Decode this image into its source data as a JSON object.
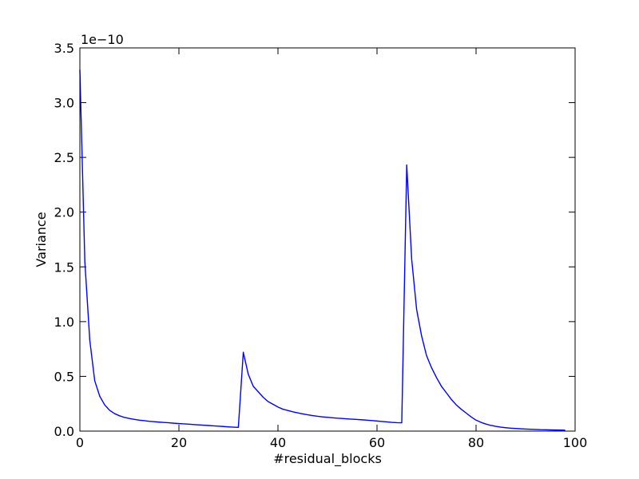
{
  "chart_data": {
    "type": "line",
    "title": "",
    "xlabel": "#residual_blocks",
    "ylabel": "Variance",
    "y_offset_text": "1e−10",
    "xlim": [
      0,
      100
    ],
    "ylim": [
      0,
      3.5
    ],
    "x_ticks": [
      0,
      20,
      40,
      60,
      80,
      100
    ],
    "x_tick_labels": [
      "0",
      "20",
      "40",
      "60",
      "80",
      "100"
    ],
    "y_ticks": [
      0,
      0.5,
      1.0,
      1.5,
      2.0,
      2.5,
      3.0,
      3.5
    ],
    "y_tick_labels": [
      "0.0",
      "0.5",
      "1.0",
      "1.5",
      "2.0",
      "2.5",
      "3.0",
      "3.5"
    ],
    "grid": false,
    "line_color": "#0000ff",
    "series": [
      {
        "x": [
          0,
          1,
          2,
          3,
          4,
          5,
          6,
          7,
          8,
          9,
          10,
          11,
          12,
          13,
          14,
          15,
          16,
          17,
          18,
          19,
          20,
          21,
          22,
          23,
          24,
          25,
          26,
          27,
          28,
          29,
          30,
          31,
          32,
          33,
          34,
          35,
          36,
          37,
          38,
          39,
          40,
          41,
          42,
          43,
          44,
          45,
          46,
          47,
          48,
          49,
          50,
          51,
          52,
          53,
          54,
          55,
          56,
          57,
          58,
          59,
          60,
          61,
          62,
          63,
          64,
          65,
          66,
          67,
          68,
          69,
          70,
          71,
          72,
          73,
          74,
          75,
          76,
          77,
          78,
          79,
          80,
          81,
          82,
          83,
          84,
          85,
          86,
          87,
          88,
          89,
          90,
          91,
          92,
          93,
          94,
          95,
          96,
          97,
          98
        ],
        "y": [
          3.3,
          1.55,
          0.83,
          0.46,
          0.32,
          0.24,
          0.19,
          0.16,
          0.14,
          0.125,
          0.115,
          0.107,
          0.1,
          0.095,
          0.09,
          0.086,
          0.082,
          0.079,
          0.076,
          0.072,
          0.069,
          0.066,
          0.063,
          0.06,
          0.057,
          0.054,
          0.051,
          0.048,
          0.045,
          0.042,
          0.039,
          0.036,
          0.034,
          0.72,
          0.52,
          0.41,
          0.36,
          0.31,
          0.27,
          0.245,
          0.22,
          0.2,
          0.188,
          0.176,
          0.166,
          0.157,
          0.149,
          0.142,
          0.135,
          0.13,
          0.126,
          0.122,
          0.118,
          0.115,
          0.112,
          0.109,
          0.106,
          0.103,
          0.1,
          0.096,
          0.092,
          0.088,
          0.084,
          0.08,
          0.077,
          0.076,
          2.43,
          1.57,
          1.11,
          0.87,
          0.69,
          0.58,
          0.49,
          0.41,
          0.35,
          0.29,
          0.24,
          0.2,
          0.165,
          0.13,
          0.1,
          0.08,
          0.064,
          0.052,
          0.043,
          0.036,
          0.031,
          0.027,
          0.024,
          0.021,
          0.019,
          0.017,
          0.015,
          0.013,
          0.012,
          0.011,
          0.01,
          0.0095,
          0.009
        ]
      }
    ]
  }
}
